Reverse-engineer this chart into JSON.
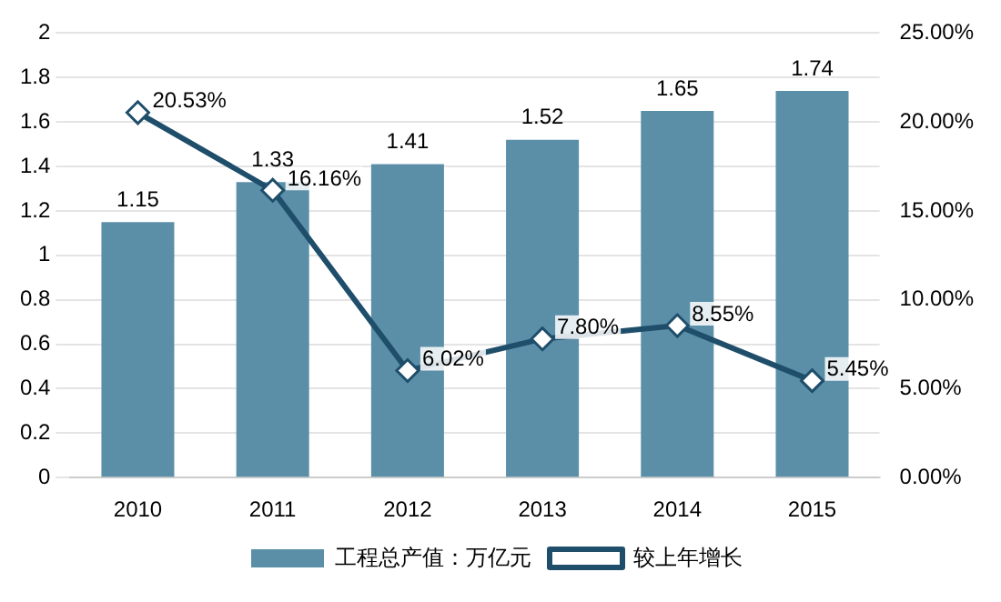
{
  "chart_data": {
    "type": "bar",
    "categories": [
      "2010",
      "2011",
      "2012",
      "2013",
      "2014",
      "2015"
    ],
    "series": [
      {
        "name": "工程总产值：万亿元",
        "color": "#5b8fa8",
        "values": [
          1.15,
          1.33,
          1.41,
          1.52,
          1.65,
          1.74
        ],
        "value_labels": [
          "1.15",
          "1.33",
          "1.41",
          "1.52",
          "1.65",
          "1.74"
        ]
      },
      {
        "name": "较上年增长",
        "type": "line",
        "axis": "y2",
        "color": "#1f4e6b",
        "marker": "diamond",
        "values": [
          20.53,
          16.16,
          6.02,
          7.8,
          8.55,
          5.45
        ],
        "value_labels": [
          "20.53%",
          "16.16%",
          "6.02%",
          "7.80%",
          "8.55%",
          "5.45%"
        ]
      }
    ],
    "ylim": [
      0,
      2
    ],
    "yticks": [
      0,
      0.2,
      0.4,
      0.6,
      0.8,
      1,
      1.2,
      1.4,
      1.6,
      1.8,
      2
    ],
    "y2lim": [
      0,
      25
    ],
    "y2ticks": [
      {
        "value": 0,
        "label": "0.00%"
      },
      {
        "value": 5,
        "label": "5.00%"
      },
      {
        "value": 10,
        "label": "10.00%"
      },
      {
        "value": 15,
        "label": "15.00%"
      },
      {
        "value": 20,
        "label": "20.00%"
      },
      {
        "value": 25,
        "label": "25.00%"
      }
    ],
    "grid": "y",
    "legend": "bottom"
  }
}
